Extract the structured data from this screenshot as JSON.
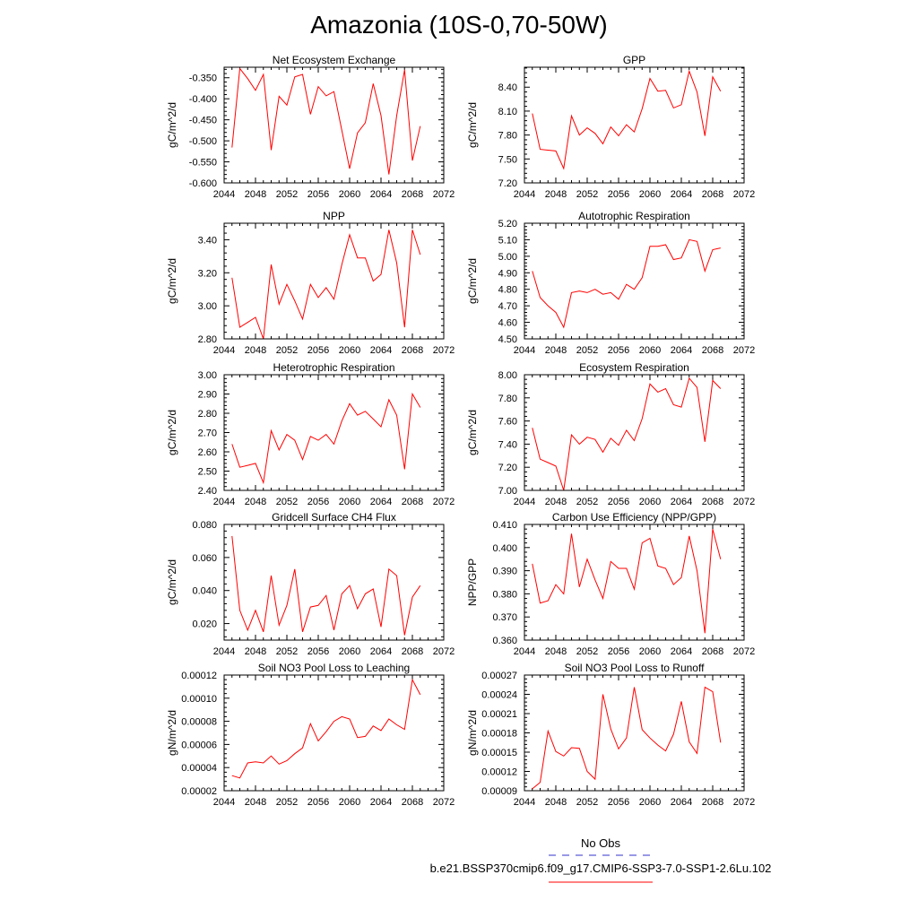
{
  "title": "Amazonia (10S-0,70-50W)",
  "legend": [
    {
      "label": "No Obs",
      "color": "#3333cc",
      "dash": true
    },
    {
      "label": "b.e21.BSSP370cmip6.f09_g17.CMIP6-SSP3-7.0-SSP1-2.6Lu.102",
      "color": "#ff0000",
      "dash": false
    }
  ],
  "chart_data": [
    {
      "type": "line",
      "title": "Net Ecosystem Exchange",
      "ylabel": "gC/m^2/d",
      "xlim": [
        2044,
        2072
      ],
      "xticks": [
        "2044",
        "2048",
        "2052",
        "2056",
        "2060",
        "2064",
        "2068",
        "2072"
      ],
      "ylim": [
        -0.6,
        -0.325
      ],
      "yticks": [
        "-0.600",
        "-0.550",
        "-0.500",
        "-0.450",
        "-0.400",
        "-0.350"
      ],
      "series": [
        {
          "color": "#ff0000",
          "x": [
            2045,
            2046,
            2047,
            2048,
            2049,
            2050,
            2051,
            2052,
            2053,
            2054,
            2055,
            2056,
            2057,
            2058,
            2059,
            2060,
            2061,
            2062,
            2063,
            2064,
            2065,
            2066,
            2067,
            2068,
            2069
          ],
          "values": [
            -0.516,
            -0.328,
            -0.352,
            -0.38,
            -0.342,
            -0.522,
            -0.394,
            -0.415,
            -0.348,
            -0.342,
            -0.437,
            -0.371,
            -0.393,
            -0.383,
            -0.475,
            -0.566,
            -0.481,
            -0.457,
            -0.364,
            -0.44,
            -0.58,
            -0.44,
            -0.331,
            -0.547,
            -0.465
          ]
        }
      ]
    },
    {
      "type": "line",
      "title": "GPP",
      "ylabel": "gC/m^2/d",
      "xlim": [
        2044,
        2072
      ],
      "xticks": [
        "2044",
        "2048",
        "2052",
        "2056",
        "2060",
        "2064",
        "2068",
        "2072"
      ],
      "ylim": [
        7.2,
        8.65
      ],
      "yticks": [
        "7.20",
        "7.50",
        "7.80",
        "8.10",
        "8.40"
      ],
      "series": [
        {
          "color": "#ff0000",
          "x": [
            2045,
            2046,
            2047,
            2048,
            2049,
            2050,
            2051,
            2052,
            2053,
            2054,
            2055,
            2056,
            2057,
            2058,
            2059,
            2060,
            2061,
            2062,
            2063,
            2064,
            2065,
            2066,
            2067,
            2068,
            2069
          ],
          "values": [
            8.07,
            7.62,
            7.61,
            7.6,
            7.38,
            8.04,
            7.8,
            7.89,
            7.82,
            7.69,
            7.9,
            7.79,
            7.93,
            7.84,
            8.13,
            8.51,
            8.35,
            8.36,
            8.14,
            8.18,
            8.6,
            8.34,
            7.79,
            8.53,
            8.35
          ]
        }
      ]
    },
    {
      "type": "line",
      "title": "NPP",
      "ylabel": "gC/m^2/d",
      "xlim": [
        2044,
        2072
      ],
      "xticks": [
        "2044",
        "2048",
        "2052",
        "2056",
        "2060",
        "2064",
        "2068",
        "2072"
      ],
      "ylim": [
        2.8,
        3.5
      ],
      "yticks": [
        "2.80",
        "3.00",
        "3.20",
        "3.40"
      ],
      "series": [
        {
          "color": "#ff0000",
          "x": [
            2045,
            2046,
            2047,
            2048,
            2049,
            2050,
            2051,
            2052,
            2053,
            2054,
            2055,
            2056,
            2057,
            2058,
            2059,
            2060,
            2061,
            2062,
            2063,
            2064,
            2065,
            2066,
            2067,
            2068,
            2069
          ],
          "values": [
            3.17,
            2.87,
            2.9,
            2.93,
            2.8,
            3.25,
            3.01,
            3.13,
            3.03,
            2.92,
            3.13,
            3.05,
            3.11,
            3.04,
            3.25,
            3.43,
            3.29,
            3.29,
            3.15,
            3.19,
            3.46,
            3.26,
            2.87,
            3.46,
            3.31
          ]
        }
      ]
    },
    {
      "type": "line",
      "title": "Autotrophic Respiration",
      "ylabel": "gC/m^2/d",
      "xlim": [
        2044,
        2072
      ],
      "xticks": [
        "2044",
        "2048",
        "2052",
        "2056",
        "2060",
        "2064",
        "2068",
        "2072"
      ],
      "ylim": [
        4.5,
        5.2
      ],
      "yticks": [
        "4.50",
        "4.60",
        "4.70",
        "4.80",
        "4.90",
        "5.00",
        "5.10",
        "5.20"
      ],
      "series": [
        {
          "color": "#ff0000",
          "x": [
            2045,
            2046,
            2047,
            2048,
            2049,
            2050,
            2051,
            2052,
            2053,
            2054,
            2055,
            2056,
            2057,
            2058,
            2059,
            2060,
            2061,
            2062,
            2063,
            2064,
            2065,
            2066,
            2067,
            2068,
            2069
          ],
          "values": [
            4.91,
            4.75,
            4.7,
            4.66,
            4.57,
            4.78,
            4.79,
            4.78,
            4.8,
            4.77,
            4.78,
            4.74,
            4.83,
            4.8,
            4.87,
            5.06,
            5.06,
            5.07,
            4.98,
            4.99,
            5.1,
            5.09,
            4.91,
            5.04,
            5.05
          ]
        }
      ]
    },
    {
      "type": "line",
      "title": "Heterotrophic Respiration",
      "ylabel": "gC/m^2/d",
      "xlim": [
        2044,
        2072
      ],
      "xticks": [
        "2044",
        "2048",
        "2052",
        "2056",
        "2060",
        "2064",
        "2068",
        "2072"
      ],
      "ylim": [
        2.4,
        3.0
      ],
      "yticks": [
        "2.40",
        "2.50",
        "2.60",
        "2.70",
        "2.80",
        "2.90",
        "3.00"
      ],
      "series": [
        {
          "color": "#ff0000",
          "x": [
            2045,
            2046,
            2047,
            2048,
            2049,
            2050,
            2051,
            2052,
            2053,
            2054,
            2055,
            2056,
            2057,
            2058,
            2059,
            2060,
            2061,
            2062,
            2063,
            2064,
            2065,
            2066,
            2067,
            2068,
            2069
          ],
          "values": [
            2.64,
            2.52,
            2.53,
            2.54,
            2.44,
            2.71,
            2.61,
            2.69,
            2.66,
            2.56,
            2.68,
            2.66,
            2.69,
            2.64,
            2.76,
            2.85,
            2.79,
            2.81,
            2.77,
            2.73,
            2.87,
            2.79,
            2.51,
            2.9,
            2.83
          ]
        }
      ]
    },
    {
      "type": "line",
      "title": "Ecosystem Respiration",
      "ylabel": "gC/m^2/d",
      "xlim": [
        2044,
        2072
      ],
      "xticks": [
        "2044",
        "2048",
        "2052",
        "2056",
        "2060",
        "2064",
        "2068",
        "2072"
      ],
      "ylim": [
        7.0,
        8.0
      ],
      "yticks": [
        "7.00",
        "7.20",
        "7.40",
        "7.60",
        "7.80",
        "8.00"
      ],
      "series": [
        {
          "color": "#ff0000",
          "x": [
            2045,
            2046,
            2047,
            2048,
            2049,
            2050,
            2051,
            2052,
            2053,
            2054,
            2055,
            2056,
            2057,
            2058,
            2059,
            2060,
            2061,
            2062,
            2063,
            2064,
            2065,
            2066,
            2067,
            2068,
            2069
          ],
          "values": [
            7.54,
            7.27,
            7.24,
            7.21,
            7.0,
            7.48,
            7.4,
            7.46,
            7.44,
            7.33,
            7.45,
            7.39,
            7.52,
            7.43,
            7.62,
            7.92,
            7.85,
            7.88,
            7.74,
            7.72,
            7.97,
            7.89,
            7.42,
            7.95,
            7.88
          ]
        }
      ]
    },
    {
      "type": "line",
      "title": "Gridcell Surface CH4 Flux",
      "ylabel": "gC/m^2/d",
      "xlim": [
        2044,
        2072
      ],
      "xticks": [
        "2044",
        "2048",
        "2052",
        "2056",
        "2060",
        "2064",
        "2068",
        "2072"
      ],
      "ylim": [
        0.01,
        0.08
      ],
      "yticks": [
        "0.020",
        "0.040",
        "0.060",
        "0.080"
      ],
      "series": [
        {
          "color": "#ff0000",
          "x": [
            2045,
            2046,
            2047,
            2048,
            2049,
            2050,
            2051,
            2052,
            2053,
            2054,
            2055,
            2056,
            2057,
            2058,
            2059,
            2060,
            2061,
            2062,
            2063,
            2064,
            2065,
            2066,
            2067,
            2068,
            2069
          ],
          "values": [
            0.073,
            0.028,
            0.016,
            0.028,
            0.015,
            0.049,
            0.019,
            0.031,
            0.053,
            0.015,
            0.03,
            0.031,
            0.037,
            0.016,
            0.038,
            0.043,
            0.029,
            0.038,
            0.041,
            0.018,
            0.053,
            0.049,
            0.013,
            0.036,
            0.043
          ]
        }
      ]
    },
    {
      "type": "line",
      "title": "Carbon Use Efficiency (NPP/GPP)",
      "ylabel": "NPP/GPP",
      "xlim": [
        2044,
        2072
      ],
      "xticks": [
        "2044",
        "2048",
        "2052",
        "2056",
        "2060",
        "2064",
        "2068",
        "2072"
      ],
      "ylim": [
        0.36,
        0.41
      ],
      "yticks": [
        "0.360",
        "0.370",
        "0.380",
        "0.390",
        "0.400",
        "0.410"
      ],
      "series": [
        {
          "color": "#ff0000",
          "x": [
            2045,
            2046,
            2047,
            2048,
            2049,
            2050,
            2051,
            2052,
            2053,
            2054,
            2055,
            2056,
            2057,
            2058,
            2059,
            2060,
            2061,
            2062,
            2063,
            2064,
            2065,
            2066,
            2067,
            2068,
            2069
          ],
          "values": [
            0.393,
            0.376,
            0.377,
            0.384,
            0.38,
            0.406,
            0.383,
            0.395,
            0.386,
            0.378,
            0.394,
            0.391,
            0.391,
            0.382,
            0.402,
            0.404,
            0.392,
            0.391,
            0.384,
            0.387,
            0.405,
            0.39,
            0.363,
            0.408,
            0.395
          ]
        }
      ]
    },
    {
      "type": "line",
      "title": "Soil NO3 Pool Loss to Leaching",
      "ylabel": "gN/m^2/d",
      "xlim": [
        2044,
        2072
      ],
      "xticks": [
        "2044",
        "2048",
        "2052",
        "2056",
        "2060",
        "2064",
        "2068",
        "2072"
      ],
      "ylim": [
        2e-05,
        0.00012
      ],
      "yticks": [
        "0.00002",
        "0.00004",
        "0.00006",
        "0.00008",
        "0.00010",
        "0.00012"
      ],
      "series": [
        {
          "color": "#ff0000",
          "x": [
            2045,
            2046,
            2047,
            2048,
            2049,
            2050,
            2051,
            2052,
            2053,
            2054,
            2055,
            2056,
            2057,
            2058,
            2059,
            2060,
            2061,
            2062,
            2063,
            2064,
            2065,
            2066,
            2067,
            2068,
            2069
          ],
          "values": [
            3.3e-05,
            3.1e-05,
            4.4e-05,
            4.5e-05,
            4.4e-05,
            5e-05,
            4.3e-05,
            4.6e-05,
            5.2e-05,
            5.7e-05,
            7.8e-05,
            6.3e-05,
            7.1e-05,
            8e-05,
            8.4e-05,
            8.2e-05,
            6.6e-05,
            6.7e-05,
            7.6e-05,
            7.2e-05,
            8.2e-05,
            7.7e-05,
            7.3e-05,
            0.000116,
            0.000103
          ]
        }
      ]
    },
    {
      "type": "line",
      "title": "Soil NO3 Pool Loss to Runoff",
      "ylabel": "gN/m^2/d",
      "xlim": [
        2044,
        2072
      ],
      "xticks": [
        "2044",
        "2048",
        "2052",
        "2056",
        "2060",
        "2064",
        "2068",
        "2072"
      ],
      "ylim": [
        9e-05,
        0.00027
      ],
      "yticks": [
        "0.00009",
        "0.00012",
        "0.00015",
        "0.00018",
        "0.00021",
        "0.00024",
        "0.00027"
      ],
      "series": [
        {
          "color": "#ff0000",
          "x": [
            2045,
            2046,
            2047,
            2048,
            2049,
            2050,
            2051,
            2052,
            2053,
            2054,
            2055,
            2056,
            2057,
            2058,
            2059,
            2060,
            2061,
            2062,
            2063,
            2064,
            2065,
            2066,
            2067,
            2068,
            2069
          ],
          "values": [
            9.3e-05,
            0.000103,
            0.000183,
            0.000151,
            0.000144,
            0.000157,
            0.000156,
            0.00012,
            0.000108,
            0.00024,
            0.000186,
            0.000155,
            0.000172,
            0.000251,
            0.000185,
            0.000172,
            0.000161,
            0.000152,
            0.000178,
            0.000229,
            0.000166,
            0.000148,
            0.000251,
            0.000244,
            0.000165
          ]
        }
      ]
    }
  ]
}
